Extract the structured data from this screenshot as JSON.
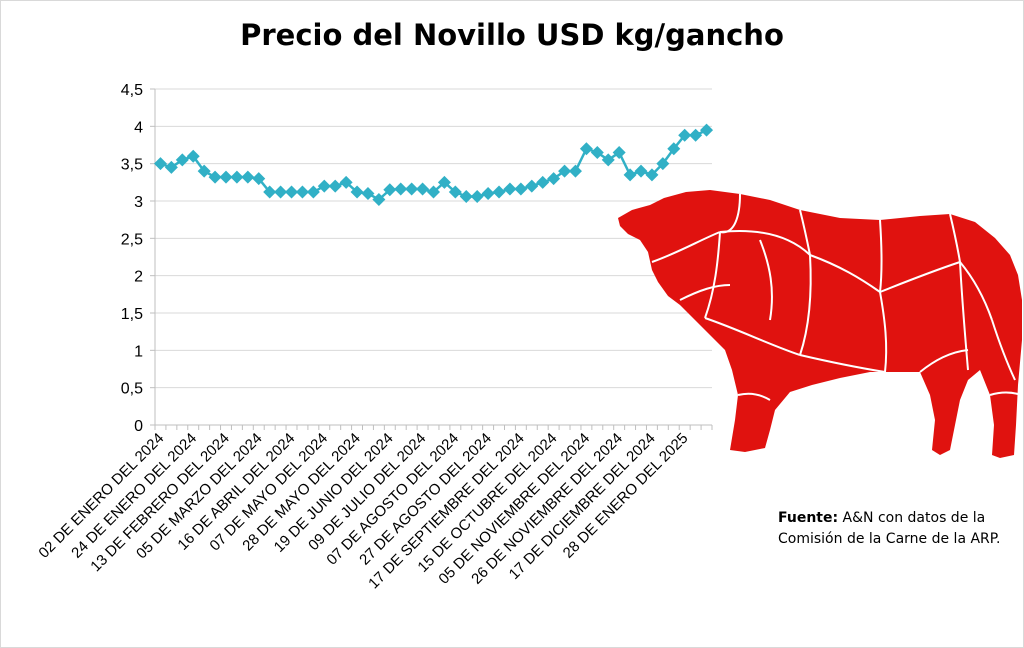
{
  "chart_data": {
    "type": "line",
    "title": "Precio del Novillo USD kg/gancho",
    "xlabel": "",
    "ylabel": "",
    "ylim": [
      0,
      4.5
    ],
    "y_ticks": [
      "0",
      "0,5",
      "1",
      "1,5",
      "2",
      "2,5",
      "3",
      "3,5",
      "4",
      "4,5"
    ],
    "x_tick_labels": [
      "02 DE ENERO DEL 2024",
      "24 DE ENERO  DEL 2024",
      "13 DE FEBRERO  DEL 2024",
      "05 DE MARZO  DEL 2024",
      "16 DE ABRIL  DEL 2024",
      "07 DE MAYO  DEL 2024",
      "28 DE MAYO  DEL 2024",
      "19 DE JUNIO  DEL 2024",
      "09 DE JULIO  DEL 2024",
      "07 DE AGOSTO  DEL 2024",
      "27 DE AGOSTO  DEL 2024",
      "17 DE SEPTIEMBRE DEL 2024",
      "15 DE OCTUBRE DEL 2024",
      "05 DE NOVIEMBRE  DEL 2024",
      "26 DE NOVIEMBRE DEL 2024",
      "17 DE DICIEMBRE DEL 2024",
      "28 DE ENERO DEL 2025"
    ],
    "grid": true,
    "marker": "diamond",
    "series_color": "#31B0C6",
    "values": [
      3.5,
      3.45,
      3.55,
      3.6,
      3.4,
      3.32,
      3.32,
      3.32,
      3.32,
      3.3,
      3.12,
      3.12,
      3.12,
      3.12,
      3.12,
      3.2,
      3.2,
      3.25,
      3.12,
      3.1,
      3.02,
      3.15,
      3.16,
      3.16,
      3.16,
      3.12,
      3.25,
      3.12,
      3.06,
      3.06,
      3.1,
      3.12,
      3.16,
      3.16,
      3.2,
      3.25,
      3.3,
      3.4,
      3.4,
      3.7,
      3.65,
      3.55,
      3.65,
      3.35,
      3.4,
      3.35,
      3.5,
      3.7,
      3.88,
      3.88,
      3.95
    ]
  },
  "source": {
    "label": "Fuente:",
    "text": " A&N con datos de la Comisión de la Carne de la ARP."
  },
  "colors": {
    "bull": "#E0120F",
    "bull_lines": "#ffffff",
    "grid": "#d9d9d9",
    "axis": "#bfbfbf"
  }
}
